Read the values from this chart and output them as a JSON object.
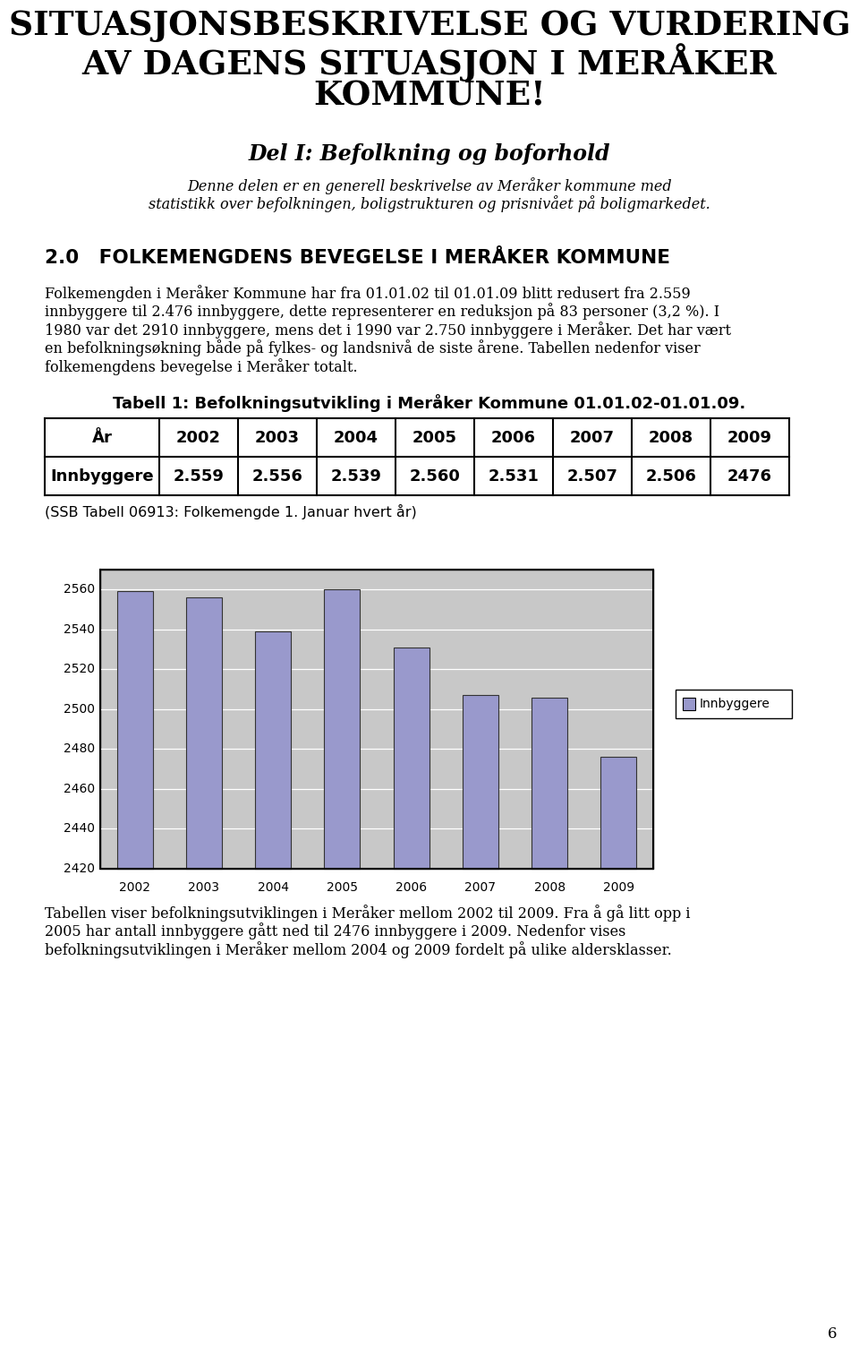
{
  "main_title_line1": "SITUASJONSBESKRIVELSE OG VURDERING",
  "main_title_line2": "AV DAGENS SITUASJON I MERÅKER",
  "main_title_line3": "KOMMUNE!",
  "section_title": "Del I: Befolkning og boforhold",
  "section_subtitle_line1": "Denne delen er en generell beskrivelse av Meråker kommune med",
  "section_subtitle_line2": "statistikk over befolkningen, boligstrukturen og prisnivået på boligmarkedet.",
  "section_number": "2.0",
  "section_heading": "FOLKEMENGDENS BEVEGELSE I MERÅKER KOMMUNE",
  "body_text1_lines": [
    "Folkemengden i Meråker Kommune har fra 01.01.02 til 01.01.09 blitt redusert fra 2.559",
    "innbyggere til 2.476 innbyggere, dette representerer en reduksjon på 83 personer (3,2 %). I",
    "1980 var det 2910 innbyggere, mens det i 1990 var 2.750 innbyggere i Meråker. Det har vært",
    "en befolkningsøkning både på fylkes- og landsnivå de siste årene. Tabellen nedenfor viser",
    "folkemengdens bevegelse i Meråker totalt."
  ],
  "table_title": "Tabell 1: Befolkningsutvikling i Meråker Kommune 01.01.02-01.01.09.",
  "table_years": [
    "År",
    "2002",
    "2003",
    "2004",
    "2005",
    "2006",
    "2007",
    "2008",
    "2009"
  ],
  "table_values": [
    "Innbyggere",
    "2.559",
    "2.556",
    "2.539",
    "2.560",
    "2.531",
    "2.507",
    "2.506",
    "2476"
  ],
  "table_note": "(SSB Tabell 06913: Folkemengde 1. Januar hvert år)",
  "chart_years": [
    2002,
    2003,
    2004,
    2005,
    2006,
    2007,
    2008,
    2009
  ],
  "chart_values": [
    2559,
    2556,
    2539,
    2560,
    2531,
    2507,
    2506,
    2476
  ],
  "chart_ylim_min": 2420,
  "chart_ylim_max": 2570,
  "chart_yticks": [
    2420,
    2440,
    2460,
    2480,
    2500,
    2520,
    2540,
    2560
  ],
  "bar_color": "#9999CC",
  "bar_edge_color": "#333333",
  "chart_bg_color": "#C8C8C8",
  "legend_label": "Innbyggere",
  "legend_box_color": "#9999CC",
  "body_text2_lines": [
    "Tabellen viser befolkningsutviklingen i Meråker mellom 2002 til 2009. Fra å gå litt opp i",
    "2005 har antall innbyggere gått ned til 2476 innbyggere i 2009. Nedenfor vises",
    "befolkningsutviklingen i Meråker mellom 2004 og 2009 fordelt på ulike aldersklasser."
  ],
  "page_number": "6",
  "background_color": "#ffffff"
}
